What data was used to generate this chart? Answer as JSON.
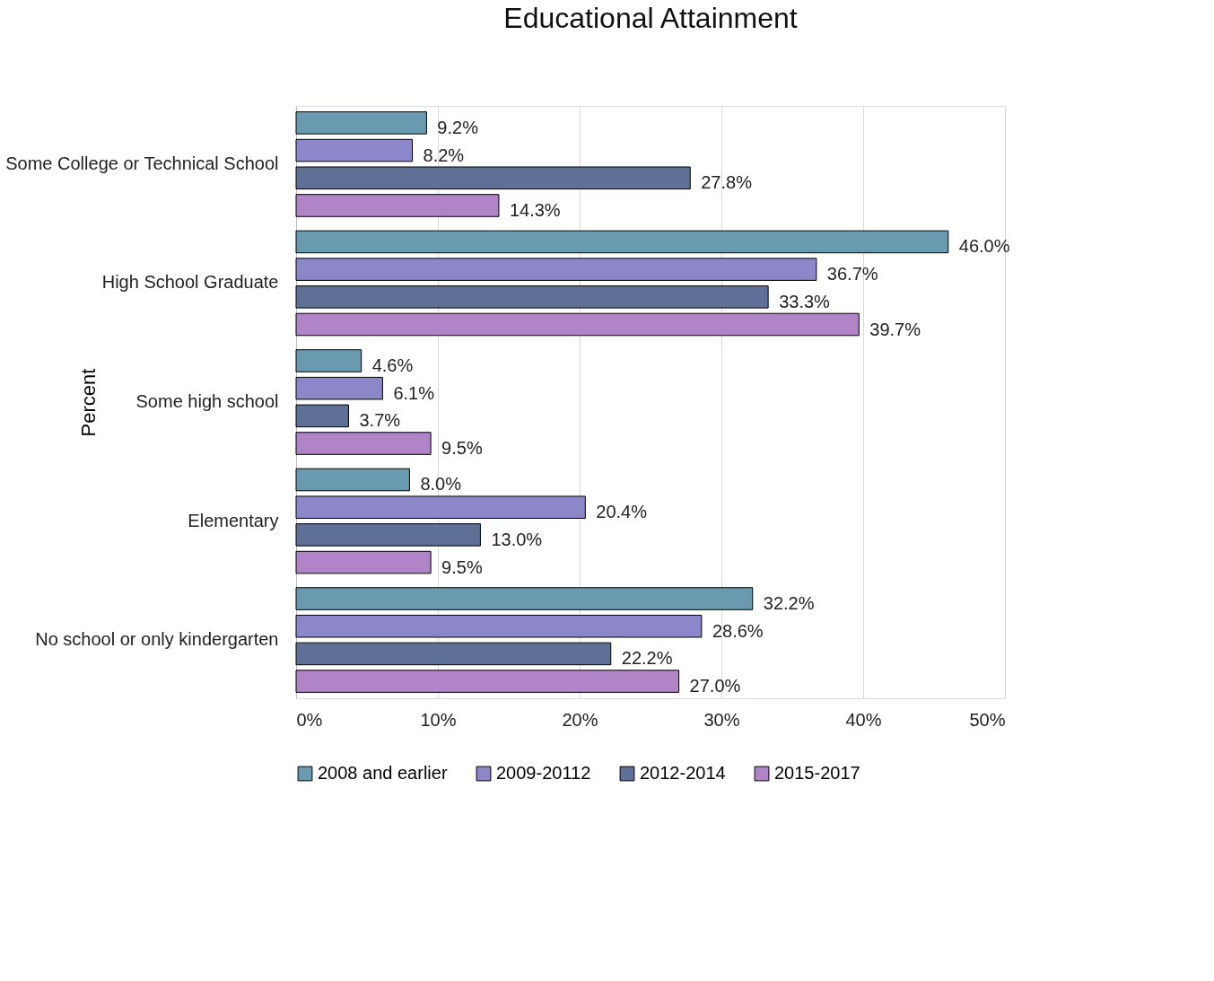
{
  "chart_data": {
    "type": "bar",
    "orientation": "horizontal",
    "title": "Educational Attainment",
    "ylabel": "Percent",
    "categories": [
      "Some College or Technical School",
      "High School Graduate",
      "Some high school",
      "Elementary",
      "No school or only kindergarten"
    ],
    "series": [
      {
        "name": "2008 and earlier",
        "color": "#6a9ab0",
        "values": [
          9.2,
          46.0,
          4.6,
          8.0,
          32.2
        ],
        "value_labels": [
          "9.2%",
          "46.0%",
          "4.6%",
          "8.0%",
          "32.2%"
        ]
      },
      {
        "name": "2009-20112",
        "color": "#8b87c8",
        "values": [
          8.2,
          36.7,
          6.1,
          20.4,
          28.6
        ],
        "value_labels": [
          "8.2%",
          "36.7%",
          "6.1%",
          "20.4%",
          "28.6%"
        ]
      },
      {
        "name": "2012-2014",
        "color": "#5e7096",
        "values": [
          27.8,
          33.3,
          3.7,
          13.0,
          22.2
        ],
        "value_labels": [
          "27.8%",
          "33.3%",
          "3.7%",
          "13.0%",
          "22.2%"
        ]
      },
      {
        "name": "2015-2017",
        "color": "#b084c6",
        "values": [
          14.3,
          39.7,
          9.5,
          9.5,
          27.0
        ],
        "value_labels": [
          "14.3%",
          "39.7%",
          "9.5%",
          "9.5%",
          "27.0%"
        ]
      }
    ],
    "xlim": [
      0,
      50
    ],
    "xticks": [
      {
        "value": 0,
        "label": "0%"
      },
      {
        "value": 10,
        "label": "10%"
      },
      {
        "value": 20,
        "label": "20%"
      },
      {
        "value": 30,
        "label": "30%"
      },
      {
        "value": 40,
        "label": "40%"
      },
      {
        "value": 50,
        "label": "50%"
      }
    ],
    "grid": "x",
    "legend": "bottom"
  }
}
